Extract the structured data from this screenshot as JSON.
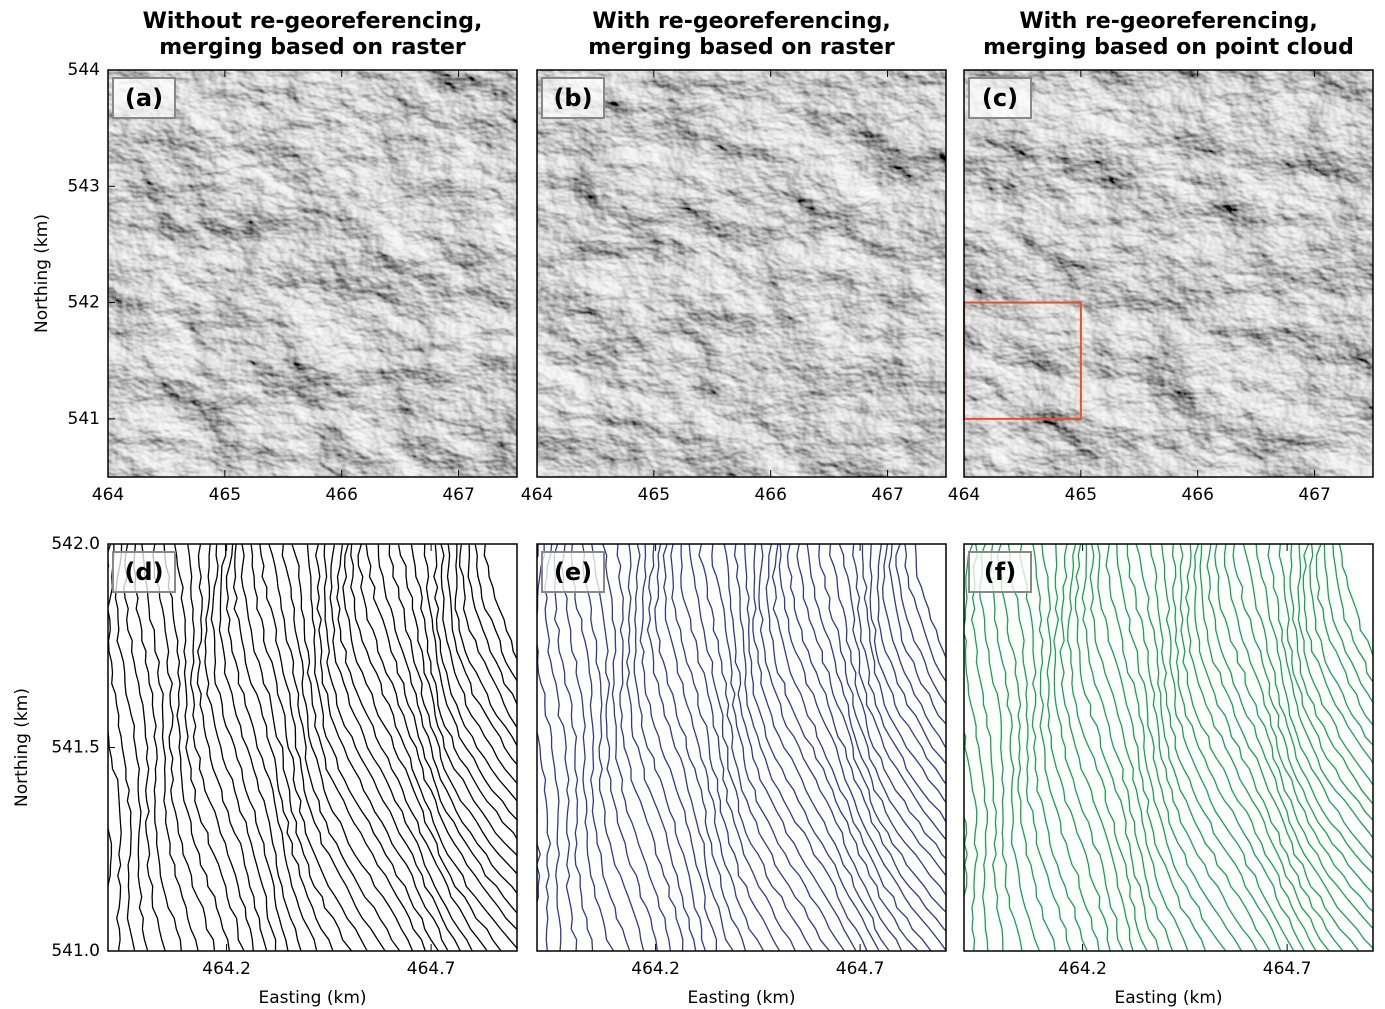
{
  "chart_data": [
    {
      "type": "hillshade",
      "title": [
        "Without re-georeferencing,",
        "merging based on raster"
      ],
      "label": "(a)",
      "ylabel": "Northing (km)",
      "xlim": [
        464,
        467.5
      ],
      "ylim": [
        540.5,
        544
      ],
      "xticks": [
        464,
        465,
        466,
        467
      ],
      "yticks": [
        541,
        542,
        543,
        544
      ]
    },
    {
      "type": "hillshade",
      "title": [
        "With re-georeferencing,",
        "merging based on raster"
      ],
      "label": "(b)",
      "xlim": [
        464,
        467.5
      ],
      "ylim": [
        540.5,
        544
      ],
      "xticks": [
        464,
        465,
        466,
        467
      ]
    },
    {
      "type": "hillshade",
      "title": [
        "With re-georeferencing,",
        "merging based on point cloud"
      ],
      "label": "(c)",
      "xlim": [
        464,
        467.5
      ],
      "ylim": [
        540.5,
        544
      ],
      "xticks": [
        464,
        465,
        466,
        467
      ],
      "highlight": {
        "xlim": [
          464,
          465
        ],
        "ylim": [
          541,
          542
        ],
        "color": "#e8502a"
      }
    },
    {
      "type": "contour",
      "label": "(d)",
      "color": "#000000",
      "ylabel": "Northing (km)",
      "xlabel": "Easting (km)",
      "xlim": [
        463.91,
        464.91
      ],
      "ylim": [
        541,
        542
      ],
      "xticks": [
        464.2,
        464.7
      ],
      "yticks": [
        {
          "value": 541,
          "label": "541.0"
        },
        541.5,
        {
          "value": 542,
          "label": "542.0"
        }
      ]
    },
    {
      "type": "contour",
      "label": "(e)",
      "color": "#2e3a93",
      "xlabel": "Easting (km)",
      "xlim": [
        463.91,
        464.91
      ],
      "ylim": [
        541,
        542
      ],
      "xticks": [
        464.2,
        464.7
      ]
    },
    {
      "type": "contour",
      "label": "(f)",
      "color": "#12a64a",
      "xlabel": "Easting (km)",
      "xlim": [
        463.91,
        464.91
      ],
      "ylim": [
        541,
        542
      ],
      "xticks": [
        464.2,
        464.7
      ]
    }
  ]
}
